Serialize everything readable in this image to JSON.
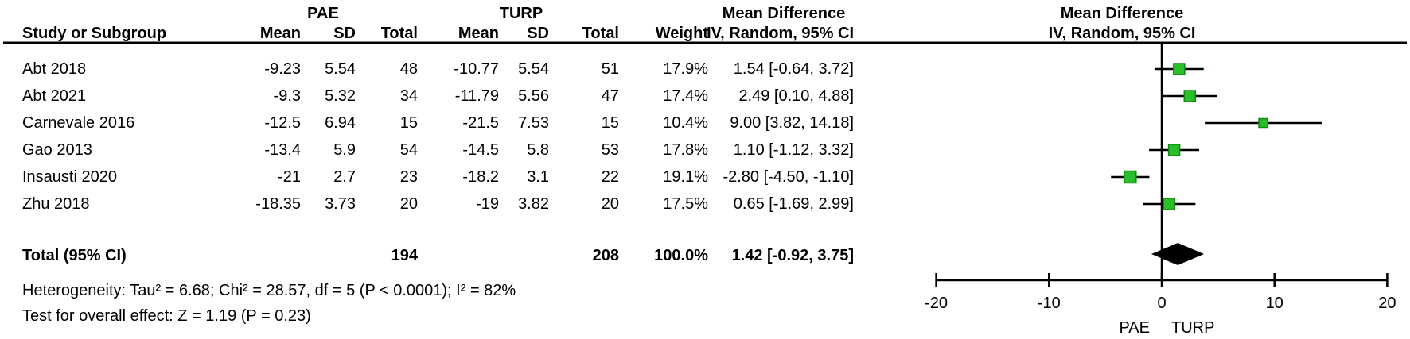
{
  "header": {
    "group1": "PAE",
    "group2": "TURP",
    "md_col_title": "Mean Difference",
    "md_col_subtitle": "IV, Random, 95% CI",
    "plot_title": "Mean Difference",
    "plot_subtitle": "IV, Random, 95% CI"
  },
  "columns": {
    "study": "Study or Subgroup",
    "mean1": "Mean",
    "sd1": "SD",
    "total1": "Total",
    "mean2": "Mean",
    "sd2": "SD",
    "total2": "Total",
    "weight": "Weight"
  },
  "rows": [
    {
      "study": "Abt 2018",
      "mean1": "-9.23",
      "sd1": "5.54",
      "total1": "48",
      "mean2": "-10.77",
      "sd2": "5.54",
      "total2": "51",
      "weight": "17.9%",
      "ci_text": "1.54 [-0.64, 3.72]"
    },
    {
      "study": "Abt 2021",
      "mean1": "-9.3",
      "sd1": "5.32",
      "total1": "34",
      "mean2": "-11.79",
      "sd2": "5.56",
      "total2": "47",
      "weight": "17.4%",
      "ci_text": "2.49 [0.10, 4.88]"
    },
    {
      "study": "Carnevale 2016",
      "mean1": "-12.5",
      "sd1": "6.94",
      "total1": "15",
      "mean2": "-21.5",
      "sd2": "7.53",
      "total2": "15",
      "weight": "10.4%",
      "ci_text": "9.00 [3.82, 14.18]"
    },
    {
      "study": "Gao 2013",
      "mean1": "-13.4",
      "sd1": "5.9",
      "total1": "54",
      "mean2": "-14.5",
      "sd2": "5.8",
      "total2": "53",
      "weight": "17.8%",
      "ci_text": "1.10 [-1.12, 3.32]"
    },
    {
      "study": "Insausti 2020",
      "mean1": "-21",
      "sd1": "2.7",
      "total1": "23",
      "mean2": "-18.2",
      "sd2": "3.1",
      "total2": "22",
      "weight": "19.1%",
      "ci_text": "-2.80 [-4.50, -1.10]"
    },
    {
      "study": "Zhu 2018",
      "mean1": "-18.35",
      "sd1": "3.73",
      "total1": "20",
      "mean2": "-19",
      "sd2": "3.82",
      "total2": "20",
      "weight": "17.5%",
      "ci_text": "0.65 [-1.69, 2.99]"
    }
  ],
  "total_row": {
    "label": "Total (95% CI)",
    "total1": "194",
    "total2": "208",
    "weight": "100.0%",
    "ci_text": "1.42 [-0.92, 3.75]"
  },
  "footer": {
    "heterogeneity": "Heterogeneity: Tau² = 6.68; Chi² = 28.57, df = 5 (P < 0.0001); I² = 82%",
    "overall_effect": "Test for overall effect: Z = 1.19 (P = 0.23)"
  },
  "colors": {
    "marker_fill": "#2abf2a",
    "marker_border": "#0e8a0e",
    "diamond_fill": "#000000",
    "line_color": "#000000"
  },
  "chart_data": {
    "type": "scatter",
    "title": "Mean Difference",
    "subtitle": "IV, Random, 95% CI",
    "xlim": [
      -20,
      20
    ],
    "ticks": [
      -20,
      -10,
      0,
      10,
      20
    ],
    "tick_labels": [
      "-20",
      "-10",
      "0",
      "10",
      "20"
    ],
    "favours_left_label": "PAE",
    "favours_right_label": "TURP",
    "studies": [
      "Abt 2018",
      "Abt 2021",
      "Carnevale 2016",
      "Gao 2013",
      "Insausti 2020",
      "Zhu 2018"
    ],
    "mean_difference": [
      1.54,
      2.49,
      9.0,
      1.1,
      -2.8,
      0.65
    ],
    "ci_low": [
      -0.64,
      0.1,
      3.82,
      -1.12,
      -4.5,
      -1.69
    ],
    "ci_high": [
      3.72,
      4.88,
      14.18,
      3.32,
      -1.1,
      2.99
    ],
    "weights_pct": [
      17.9,
      17.4,
      10.4,
      17.8,
      19.1,
      17.5
    ],
    "total": {
      "label": "Total (95% CI)",
      "mean_difference": 1.42,
      "ci_low": -0.92,
      "ci_high": 3.75,
      "weight_pct": 100.0
    }
  }
}
